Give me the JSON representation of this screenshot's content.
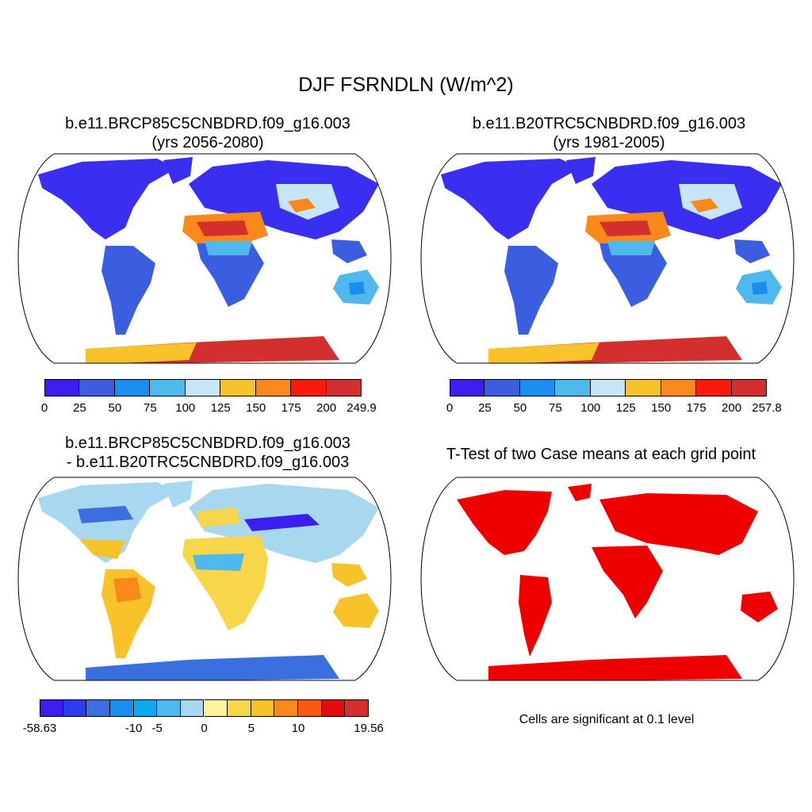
{
  "main_title": "DJF FSRNDLN (W/m^2)",
  "panels": [
    {
      "id": "case1",
      "title_line1": "b.e11.BRCP85C5CNBDRD.f09_g16.003",
      "title_line2": "(yrs 2056-2080)",
      "colorbar": {
        "colors": [
          "#3a1ff0",
          "#3b5ee0",
          "#1b8cf0",
          "#4fb8ec",
          "#c6e6f8",
          "#f8c32a",
          "#f8891a",
          "#f81a0a",
          "#d32f2f"
        ],
        "labels": [
          "0",
          "25",
          "50",
          "75",
          "100",
          "125",
          "150",
          "175",
          "200",
          "249.9"
        ]
      }
    },
    {
      "id": "case2",
      "title_line1": "b.e11.B20TRC5CNBDRD.f09_g16.003",
      "title_line2": "(yrs 1981-2005)",
      "colorbar": {
        "colors": [
          "#3a1ff0",
          "#3b5ee0",
          "#1b8cf0",
          "#4fb8ec",
          "#c6e6f8",
          "#f8c32a",
          "#f8891a",
          "#f81a0a",
          "#d32f2f"
        ],
        "labels": [
          "0",
          "25",
          "50",
          "75",
          "100",
          "125",
          "150",
          "175",
          "200",
          "257.8"
        ]
      }
    },
    {
      "id": "diff",
      "title_line1": "b.e11.BRCP85C5CNBDRD.f09_g16.003",
      "title_line2": "- b.e11.B20TRC5CNBDRD.f09_g16.003",
      "colorbar": {
        "colors": [
          "#3a1ff0",
          "#2a3ef0",
          "#3b6fe0",
          "#1b8cf0",
          "#10a8f0",
          "#4fb8ec",
          "#a8d8f0",
          "#fff3a0",
          "#f8d64a",
          "#f8c32a",
          "#f8891a",
          "#f85a14",
          "#e20a0a",
          "#d32f2f"
        ],
        "labels": [
          "-58.63",
          "-10",
          "-5",
          "0",
          "5",
          "10",
          "19.56"
        ]
      }
    },
    {
      "id": "ttest",
      "title_line1": "T-Test of two Case means at each grid point",
      "note": "Cells are significant at 0.1 level"
    }
  ]
}
